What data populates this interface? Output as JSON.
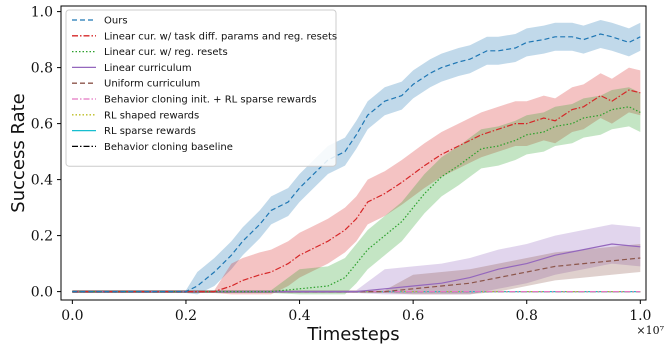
{
  "chart_data": {
    "type": "line",
    "xlabel": "Timesteps",
    "ylabel": "Success Rate",
    "x_multiplier_label": "×10⁷",
    "xlim": [
      -0.02,
      1.01
    ],
    "ylim": [
      -0.03,
      1.02
    ],
    "xticks": [
      0.0,
      0.2,
      0.4,
      0.6,
      0.8,
      1.0
    ],
    "xtick_labels": [
      "0.0",
      "0.2",
      "0.4",
      "0.6",
      "0.8",
      "1.0"
    ],
    "yticks": [
      0.0,
      0.2,
      0.4,
      0.6,
      0.8,
      1.0
    ],
    "ytick_labels": [
      "0.0",
      "0.2",
      "0.4",
      "0.6",
      "0.8",
      "1.0"
    ],
    "grid": false,
    "legend_position": "top-left",
    "series": [
      {
        "name": "Ours",
        "color": "#1f77b4",
        "dash": "dashed",
        "x": [
          0.0,
          0.1,
          0.2,
          0.22,
          0.25,
          0.28,
          0.3,
          0.33,
          0.35,
          0.38,
          0.4,
          0.42,
          0.45,
          0.48,
          0.5,
          0.52,
          0.55,
          0.58,
          0.6,
          0.63,
          0.65,
          0.68,
          0.7,
          0.73,
          0.75,
          0.78,
          0.8,
          0.83,
          0.85,
          0.88,
          0.9,
          0.93,
          0.95,
          0.98,
          1.0
        ],
        "y": [
          0.0,
          0.0,
          0.0,
          0.02,
          0.07,
          0.13,
          0.18,
          0.24,
          0.29,
          0.32,
          0.37,
          0.41,
          0.47,
          0.5,
          0.56,
          0.63,
          0.68,
          0.7,
          0.74,
          0.78,
          0.8,
          0.82,
          0.83,
          0.86,
          0.86,
          0.87,
          0.89,
          0.9,
          0.91,
          0.91,
          0.9,
          0.92,
          0.91,
          0.89,
          0.91
        ],
        "band": 0.05
      },
      {
        "name": "Linear cur. w/ task diff. params and reg. resets",
        "color": "#d62728",
        "dash": "dashdot",
        "x": [
          0.0,
          0.2,
          0.25,
          0.28,
          0.3,
          0.33,
          0.35,
          0.38,
          0.4,
          0.42,
          0.45,
          0.48,
          0.5,
          0.52,
          0.55,
          0.58,
          0.6,
          0.62,
          0.65,
          0.68,
          0.7,
          0.72,
          0.75,
          0.78,
          0.8,
          0.83,
          0.85,
          0.88,
          0.9,
          0.93,
          0.95,
          0.98,
          1.0
        ],
        "y": [
          0.0,
          0.0,
          0.0,
          0.02,
          0.04,
          0.06,
          0.07,
          0.1,
          0.13,
          0.15,
          0.18,
          0.22,
          0.26,
          0.32,
          0.35,
          0.39,
          0.42,
          0.45,
          0.49,
          0.52,
          0.54,
          0.56,
          0.58,
          0.6,
          0.6,
          0.62,
          0.61,
          0.65,
          0.66,
          0.7,
          0.68,
          0.72,
          0.71
        ],
        "band": 0.08
      },
      {
        "name": "Linear cur. w/ reg. resets",
        "color": "#2ca02c",
        "dash": "dotted",
        "x": [
          0.0,
          0.35,
          0.4,
          0.45,
          0.48,
          0.5,
          0.52,
          0.55,
          0.58,
          0.6,
          0.62,
          0.65,
          0.68,
          0.7,
          0.72,
          0.75,
          0.78,
          0.8,
          0.83,
          0.85,
          0.88,
          0.9,
          0.93,
          0.95,
          0.98,
          1.0
        ],
        "y": [
          0.0,
          0.0,
          0.01,
          0.02,
          0.05,
          0.1,
          0.15,
          0.2,
          0.25,
          0.3,
          0.35,
          0.41,
          0.45,
          0.48,
          0.51,
          0.52,
          0.54,
          0.56,
          0.57,
          0.59,
          0.6,
          0.62,
          0.63,
          0.65,
          0.66,
          0.64
        ],
        "band": 0.07
      },
      {
        "name": "Linear curriculum",
        "color": "#9467bd",
        "dash": "solid",
        "x": [
          0.0,
          0.5,
          0.55,
          0.6,
          0.65,
          0.7,
          0.75,
          0.8,
          0.85,
          0.9,
          0.95,
          1.0
        ],
        "y": [
          0.0,
          0.0,
          0.01,
          0.02,
          0.03,
          0.05,
          0.08,
          0.1,
          0.13,
          0.15,
          0.17,
          0.16
        ],
        "band": 0.07
      },
      {
        "name": "Uniform curriculum",
        "color": "#8c564b",
        "dash": "dashed",
        "x": [
          0.0,
          0.55,
          0.6,
          0.65,
          0.7,
          0.75,
          0.8,
          0.85,
          0.9,
          0.95,
          1.0
        ],
        "y": [
          0.0,
          0.0,
          0.01,
          0.02,
          0.03,
          0.05,
          0.07,
          0.09,
          0.1,
          0.11,
          0.12
        ],
        "band": 0.05
      },
      {
        "name": "Behavior cloning init. + RL sparse rewards",
        "color": "#e377c2",
        "dash": "dashdot",
        "x": [
          0.0,
          1.0
        ],
        "y": [
          0.0,
          0.0
        ],
        "band": 0.0
      },
      {
        "name": "RL shaped rewards",
        "color": "#bcbd22",
        "dash": "dotted",
        "x": [
          0.0,
          1.0
        ],
        "y": [
          0.0,
          0.0
        ],
        "band": 0.0
      },
      {
        "name": "RL sparse rewards",
        "color": "#17becf",
        "dash": "solid",
        "x": [
          0.0,
          1.0
        ],
        "y": [
          0.0,
          0.0
        ],
        "band": 0.0
      },
      {
        "name": "Behavior cloning baseline",
        "color": "#000000",
        "dash": "dashdot",
        "x": [
          0.0,
          1.0
        ],
        "y": [
          0.0,
          0.0
        ],
        "band": 0.0
      }
    ]
  }
}
